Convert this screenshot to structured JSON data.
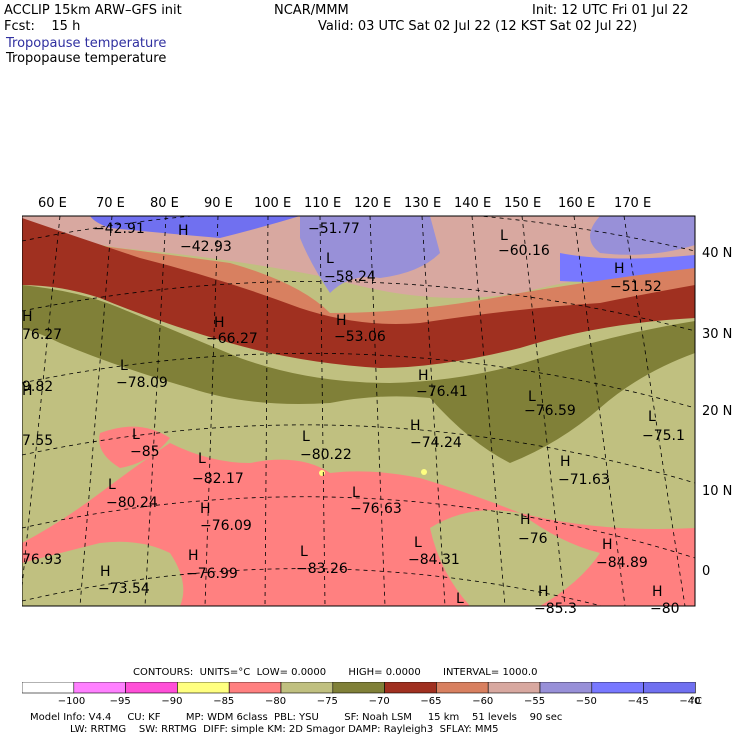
{
  "header": {
    "model": "ACCLIP 15km ARW–GFS init",
    "center": "NCAR/MMM",
    "init": "Init: 12 UTC Fri 01 Jul 22",
    "fcst": "Fcst:    15 h",
    "valid": "Valid: 03 UTC Sat 02 Jul 22 (12 KST Sat 02 Jul 22)",
    "field_colored": "Tropopause temperature",
    "field": "Tropopause temperature"
  },
  "map": {
    "lon_labels": [
      "60 E",
      "70 E",
      "80 E",
      "90 E",
      "100 E",
      "110 E",
      "120 E",
      "130 E",
      "140 E",
      "150 E",
      "160 E",
      "170 E"
    ],
    "lat_labels": [
      "40 N",
      "30 N",
      "20 N",
      "10 N",
      "0"
    ],
    "highs": [
      "H",
      "H",
      "H",
      "H",
      "H",
      "H",
      "H",
      "H",
      "H",
      "H",
      "H",
      "H",
      "H",
      "H",
      "H",
      "H"
    ],
    "lows": [
      "L",
      "L",
      "L",
      "L",
      "L",
      "L",
      "L",
      "L",
      "L",
      "L",
      "L",
      "L",
      "L"
    ],
    "values": [
      "−42.91",
      "−42.93",
      "−51.77",
      "−60.16",
      "−51.52",
      "−58.24",
      "−66.27",
      "−53.06",
      "76.27",
      "−78.09",
      "9.82",
      "−76.41",
      "−76.59",
      "−75.1",
      "7.55",
      "−85",
      "−80.22",
      "−74.24",
      "−82.17",
      "−71.63",
      "−80.24",
      "−76.63",
      "−76.09",
      "−76",
      "76.93",
      "−76.99",
      "−83.26",
      "−84.31",
      "−84.89",
      "−73.54",
      "−85.3",
      "−80"
    ]
  },
  "contour_info": {
    "contours": "CONTOURS:",
    "units": "UNITS=°C",
    "low": "LOW=",
    "low_val": "0.0000",
    "high": "HIGH=",
    "high_val": "0.0000",
    "interval": "INTERVAL=",
    "interval_val": "1000.0"
  },
  "colorbar": {
    "colors": [
      "#ffffff",
      "#ff80ff",
      "#ff4fd8",
      "#ffff80",
      "#ff8080",
      "#c0c080",
      "#808038",
      "#a03020",
      "#d88060",
      "#d8a8a0",
      "#9890d8",
      "#7878ff",
      "#7070f0"
    ],
    "labels": [
      "−100",
      "−95",
      "−90",
      "−85",
      "−80",
      "−75",
      "−70",
      "−65",
      "−60",
      "−55",
      "−50",
      "−45",
      "−40"
    ],
    "unit": "°C"
  },
  "footer": {
    "line1": "Model Info: V4.4     CU: KF        MP: WDM 6class  PBL: YSU        SF: Noah LSM     15 km    51 levels    90 sec",
    "line2": "LW: RRTMG    SW: RRTMG  DIFF: simple KM: 2D Smagor DAMP: Rayleigh3  SFLAY: MM5"
  }
}
